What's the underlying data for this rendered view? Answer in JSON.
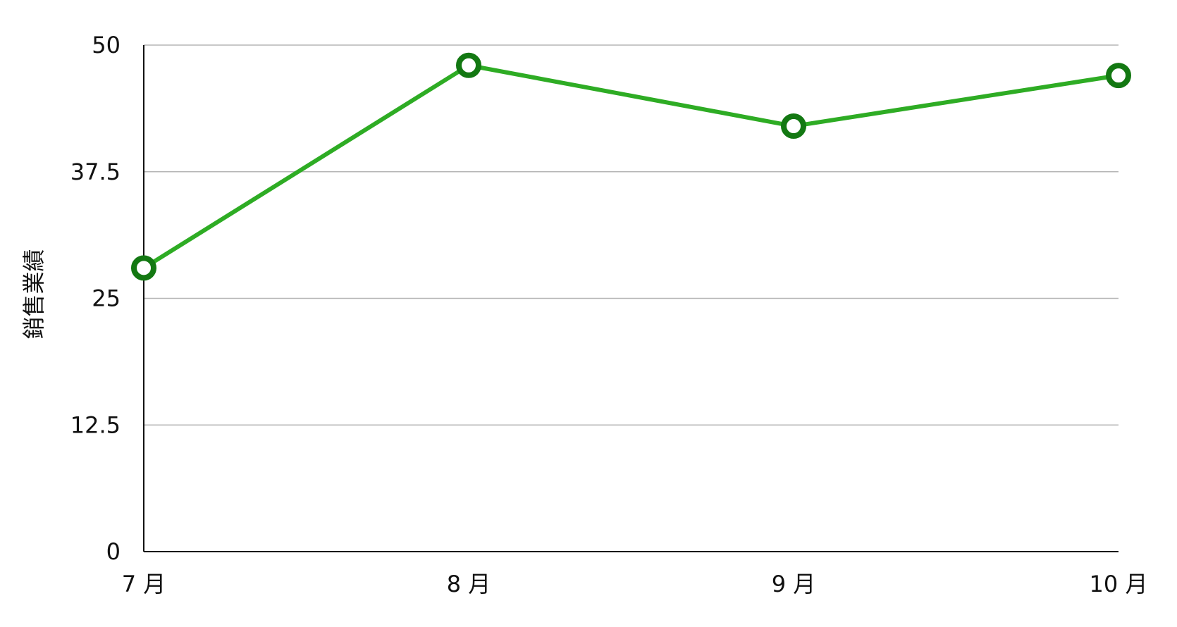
{
  "chart_data": {
    "type": "line",
    "title": "",
    "xlabel": "",
    "ylabel": "銷售業績",
    "ylim": [
      0,
      50
    ],
    "yticks": [
      "0",
      "12.5",
      "25",
      "37.5",
      "50"
    ],
    "categories": [
      "7 月",
      "8 月",
      "9 月",
      "10 月"
    ],
    "series": [
      {
        "values": [
          28,
          48,
          42,
          47
        ],
        "color": "#2eac24",
        "marker_color": "#137812"
      }
    ],
    "grid": true,
    "legend": "none"
  }
}
